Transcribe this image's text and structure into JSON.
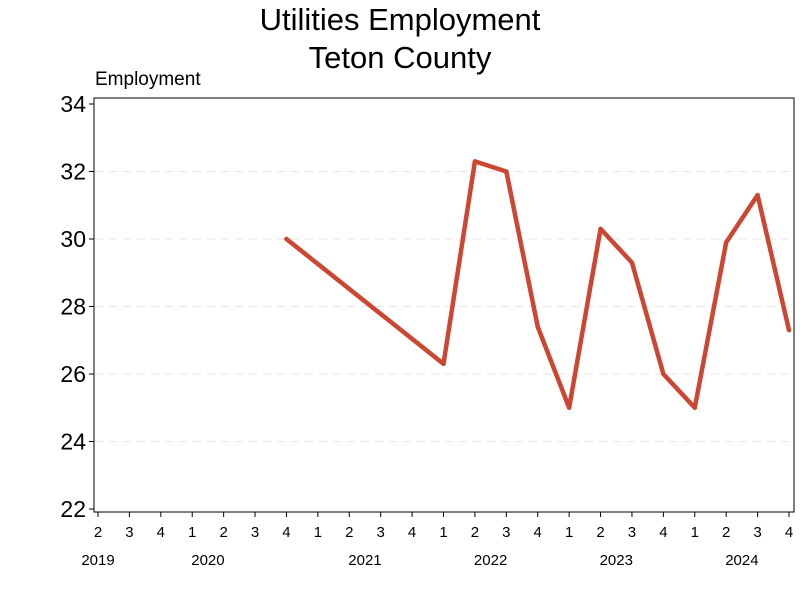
{
  "chart_data": {
    "type": "line",
    "title": "Utilities Employment",
    "subtitle": "Teton County",
    "ylabel": "Employment",
    "xlabel": "",
    "ylim": [
      22,
      34
    ],
    "yticks": [
      22,
      24,
      26,
      28,
      30,
      32,
      34
    ],
    "grid": true,
    "legend": "none",
    "x": [
      {
        "quarter": "2",
        "year": "2019"
      },
      {
        "quarter": "3",
        "year": "2019"
      },
      {
        "quarter": "4",
        "year": "2019"
      },
      {
        "quarter": "1",
        "year": "2020"
      },
      {
        "quarter": "2",
        "year": "2020"
      },
      {
        "quarter": "3",
        "year": "2020"
      },
      {
        "quarter": "4",
        "year": "2020"
      },
      {
        "quarter": "1",
        "year": "2021"
      },
      {
        "quarter": "2",
        "year": "2021"
      },
      {
        "quarter": "3",
        "year": "2021"
      },
      {
        "quarter": "4",
        "year": "2021"
      },
      {
        "quarter": "1",
        "year": "2022"
      },
      {
        "quarter": "2",
        "year": "2022"
      },
      {
        "quarter": "3",
        "year": "2022"
      },
      {
        "quarter": "4",
        "year": "2022"
      },
      {
        "quarter": "1",
        "year": "2023"
      },
      {
        "quarter": "2",
        "year": "2023"
      },
      {
        "quarter": "3",
        "year": "2023"
      },
      {
        "quarter": "4",
        "year": "2023"
      },
      {
        "quarter": "1",
        "year": "2024"
      },
      {
        "quarter": "2",
        "year": "2024"
      },
      {
        "quarter": "3",
        "year": "2024"
      },
      {
        "quarter": "4",
        "year": "2024"
      }
    ],
    "year_labels": [
      {
        "year": "2019",
        "at": "2019 Q2"
      },
      {
        "year": "2020",
        "at": "2020 Q1.5"
      },
      {
        "year": "2021",
        "at": "2021 Q2.5"
      },
      {
        "year": "2022",
        "at": "2022 Q2.5"
      },
      {
        "year": "2023",
        "at": "2023 Q2.5"
      },
      {
        "year": "2024",
        "at": "2024 Q2.5"
      }
    ],
    "series": [
      {
        "color": "#cc4631",
        "values": [
          null,
          null,
          null,
          null,
          null,
          null,
          30,
          null,
          null,
          null,
          null,
          26.3,
          32.3,
          32.0,
          27.4,
          25.0,
          30.3,
          29.3,
          26.0,
          25.0,
          29.9,
          31.3,
          27.3
        ]
      }
    ]
  }
}
